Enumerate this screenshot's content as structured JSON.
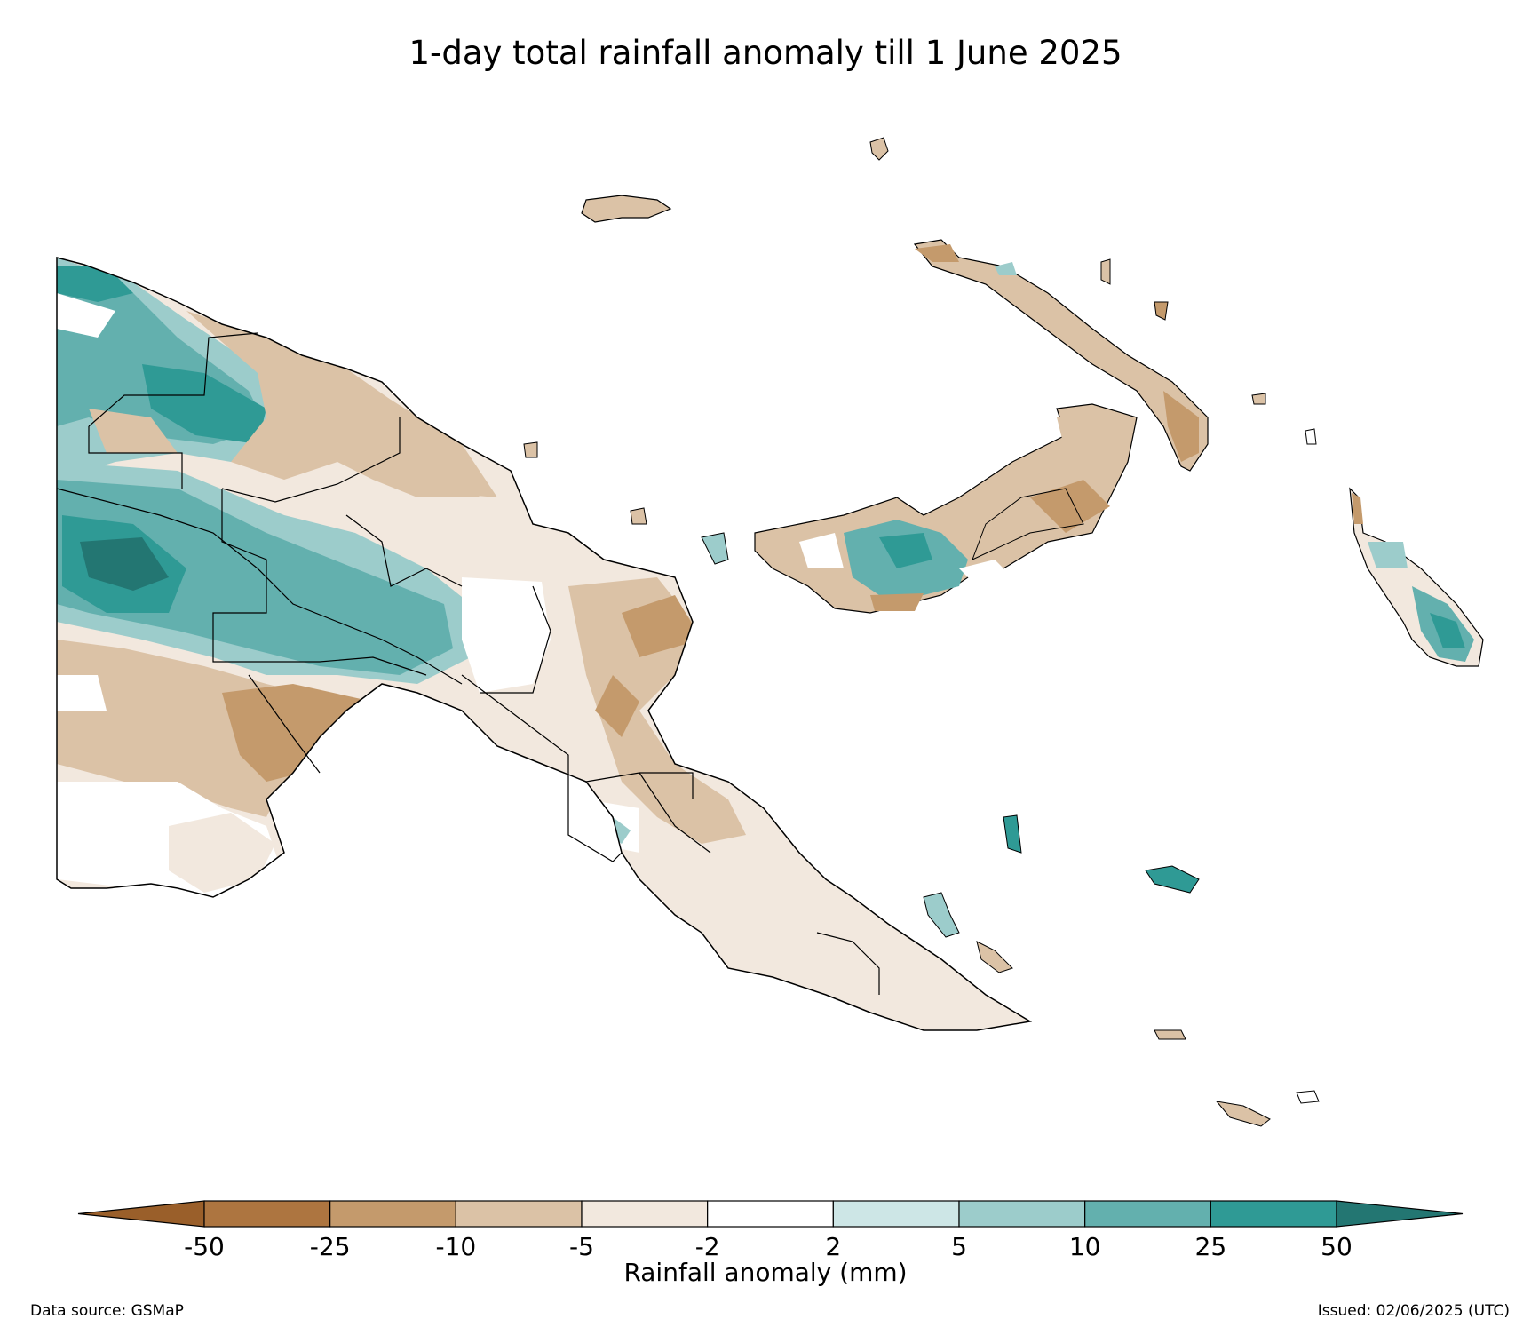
{
  "title": "1-day total rainfall anomaly till 1 June 2025",
  "colorbar": {
    "label": "Rainfall anomaly (mm)",
    "ticks": [
      "-50",
      "-25",
      "-10",
      "-5",
      "-2",
      "2",
      "5",
      "10",
      "25",
      "50"
    ],
    "colors": [
      "#9a5f2a",
      "#ad7540",
      "#c49a6c",
      "#dbc2a6",
      "#f2e8de",
      "#ffffff",
      "#cde6e6",
      "#9ccccb",
      "#63b0ae",
      "#2f9a95",
      "#237672"
    ]
  },
  "footer": {
    "source": "Data source: GSMaP",
    "issued": "Issued: 02/06/2025 (UTC)"
  }
}
